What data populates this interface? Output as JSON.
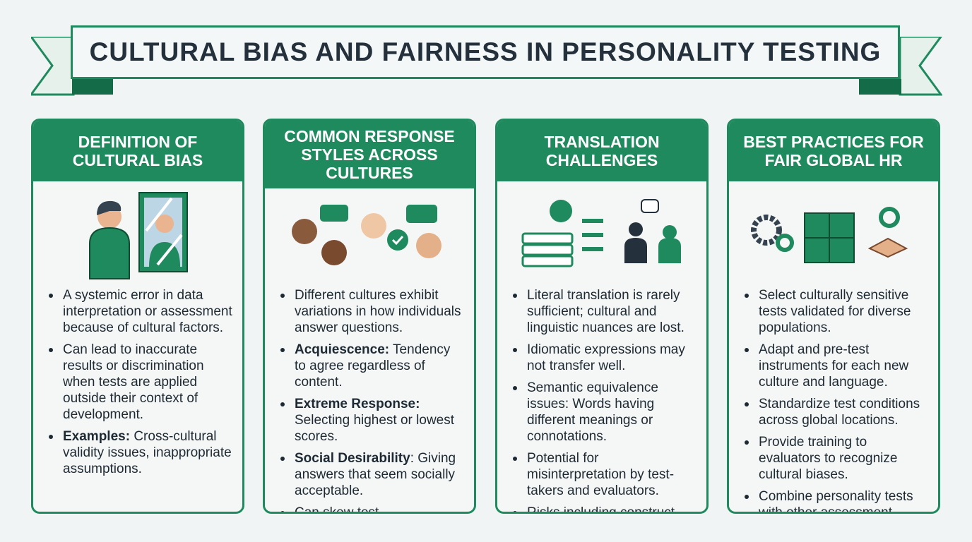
{
  "title": "CULTURAL BIAS AND FAIRNESS IN PERSONALITY TESTING",
  "colors": {
    "accent": "#1f8a5e",
    "background": "#f1f4f5",
    "text": "#1e2a33"
  },
  "cards": [
    {
      "title": "DEFINITION OF CULTURAL BIAS",
      "icon": "person-mirror-icon",
      "items": [
        {
          "bold": "",
          "text": "A systemic error in data interpretation or assessment because of cultural factors."
        },
        {
          "bold": "",
          "text": "Can lead to inaccurate results or discrimination when tests are applied outside their context of development."
        },
        {
          "bold": "Examples:",
          "text": " Cross-cultural validity issues, inappropriate assumptions."
        }
      ]
    },
    {
      "title": "COMMON RESPONSE STYLES ACROSS CULTURES",
      "icon": "diverse-people-chat-icon",
      "items": [
        {
          "bold": "",
          "text": "Different cultures exhibit variations in how individuals answer questions."
        },
        {
          "bold": "Acquiescence:",
          "text": " Tendency to agree regardless of content."
        },
        {
          "bold": "Extreme Response:",
          "text": " Selecting highest or lowest scores."
        },
        {
          "bold": "Social Desirability",
          "text": ": Giving answers that seem socially acceptable."
        },
        {
          "bold": "",
          "text": "Can skew test interpretations if not accounted for."
        }
      ]
    },
    {
      "title": "TRANSLATION CHALLENGES",
      "icon": "books-globe-translation-icon",
      "items": [
        {
          "bold": "",
          "text": "Literal translation is rarely sufficient; cultural and linguistic nuances are lost."
        },
        {
          "bold": "",
          "text": "Idiomatic expressions may not transfer well."
        },
        {
          "bold": "",
          "text": "Semantic equivalence issues: Words having different meanings or connotations."
        },
        {
          "bold": "",
          "text": "Potential for misinterpretation by test-takers and evaluators."
        },
        {
          "bold": "",
          "text": "Risks including construct invalidity and reduced reliability."
        }
      ]
    },
    {
      "title": "BEST PRACTICES FOR FAIR GLOBAL HR",
      "icon": "puzzle-gears-handshake-icon",
      "items": [
        {
          "bold": "",
          "text": "Select culturally sensitive tests validated for diverse populations."
        },
        {
          "bold": "",
          "text": "Adapt and pre-test instruments for each new culture and language."
        },
        {
          "bold": "",
          "text": "Standardize test conditions across global locations."
        },
        {
          "bold": "",
          "text": "Provide training to evaluators to recognize cultural biases."
        },
        {
          "bold": "",
          "text": "Combine personality tests with other assessment methods and interviews."
        }
      ]
    }
  ]
}
